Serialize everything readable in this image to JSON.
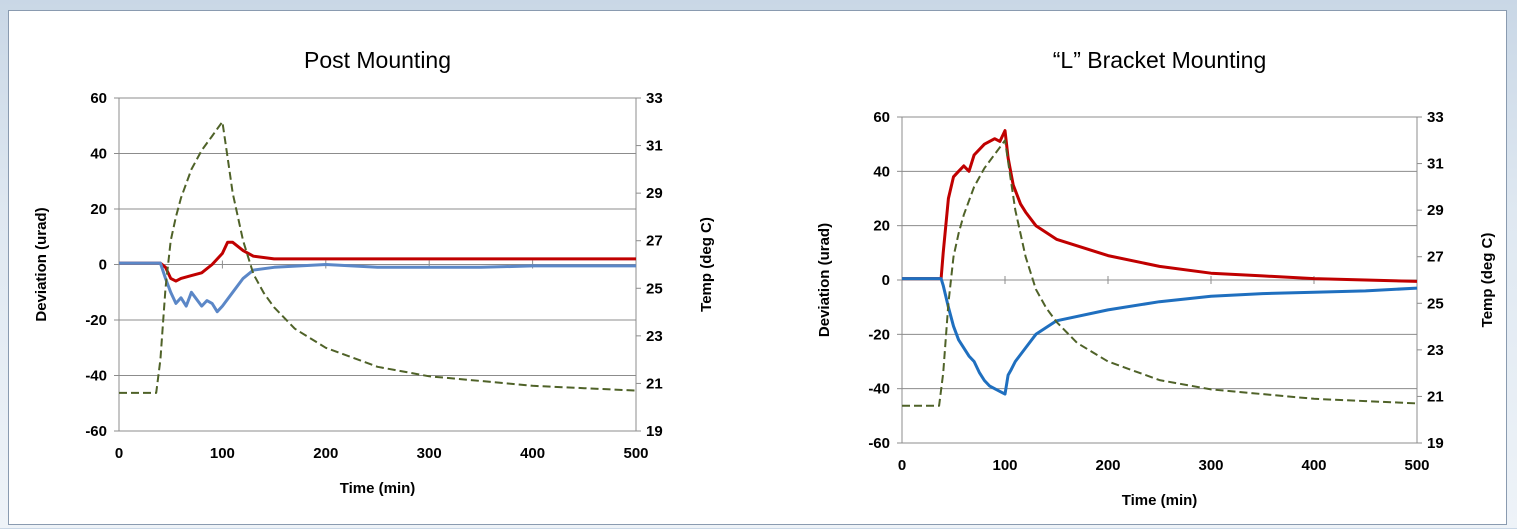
{
  "chart_data": [
    {
      "type": "line",
      "title": "Post Mounting",
      "xlabel": "Time (min)",
      "ylabel": "Deviation (urad)",
      "y2label": "Temp (deg C)",
      "xlim": [
        0,
        500
      ],
      "ylim": [
        -60,
        60
      ],
      "y2lim": [
        19,
        33
      ],
      "xticks": [
        0,
        100,
        200,
        300,
        400,
        500
      ],
      "yticks": [
        -60,
        -40,
        -20,
        0,
        20,
        40,
        60
      ],
      "y2ticks": [
        19,
        21,
        23,
        25,
        27,
        29,
        31,
        33
      ],
      "grid": true,
      "series": [
        {
          "color": "#c00000",
          "axis": "left",
          "style": "solid",
          "x": [
            0,
            20,
            40,
            45,
            50,
            55,
            60,
            70,
            80,
            90,
            100,
            105,
            110,
            120,
            130,
            150,
            200,
            250,
            300,
            350,
            400,
            450,
            500
          ],
          "y": [
            0.5,
            0.5,
            0.5,
            -1,
            -5,
            -6,
            -5,
            -4,
            -3,
            0,
            4,
            8,
            8,
            5,
            3,
            2,
            2,
            2,
            2,
            2,
            2,
            2,
            2
          ]
        },
        {
          "color": "#5b87c7",
          "axis": "left",
          "style": "solid",
          "x": [
            0,
            20,
            40,
            45,
            50,
            55,
            60,
            65,
            70,
            80,
            85,
            90,
            95,
            100,
            110,
            120,
            130,
            150,
            200,
            250,
            300,
            350,
            400,
            450,
            500
          ],
          "y": [
            0.5,
            0.5,
            0.5,
            -5,
            -10,
            -14,
            -12,
            -15,
            -10,
            -15,
            -13,
            -14,
            -17,
            -15,
            -10,
            -5,
            -2,
            -1,
            0,
            -1,
            -1,
            -1,
            -0.5,
            -0.5,
            -0.5
          ]
        },
        {
          "color": "#4f6228",
          "axis": "right",
          "style": "dashed",
          "x": [
            0,
            20,
            36,
            40,
            45,
            50,
            55,
            60,
            70,
            80,
            90,
            95,
            100,
            105,
            110,
            120,
            130,
            140,
            150,
            170,
            200,
            250,
            300,
            350,
            400,
            450,
            500
          ],
          "y": [
            20.6,
            20.6,
            20.6,
            22,
            25,
            27,
            28,
            28.8,
            30,
            30.8,
            31.4,
            31.7,
            32,
            30.5,
            29,
            27,
            25.6,
            24.8,
            24.2,
            23.3,
            22.5,
            21.7,
            21.3,
            21.1,
            20.9,
            20.8,
            20.7
          ]
        }
      ]
    },
    {
      "type": "line",
      "title": "“L” Bracket Mounting",
      "xlabel": "Time (min)",
      "ylabel": "Deviation (urad)",
      "y2label": "Temp (deg C)",
      "xlim": [
        0,
        500
      ],
      "ylim": [
        -60,
        60
      ],
      "y2lim": [
        19,
        33
      ],
      "xticks": [
        0,
        100,
        200,
        300,
        400,
        500
      ],
      "yticks": [
        -60,
        -40,
        -20,
        0,
        20,
        40,
        60
      ],
      "y2ticks": [
        19,
        21,
        23,
        25,
        27,
        29,
        31,
        33
      ],
      "grid": true,
      "series": [
        {
          "color": "#c00000",
          "axis": "left",
          "style": "solid",
          "x": [
            0,
            20,
            38,
            40,
            45,
            50,
            55,
            60,
            65,
            70,
            80,
            90,
            95,
            100,
            103,
            108,
            115,
            120,
            130,
            150,
            200,
            250,
            300,
            350,
            400,
            450,
            500
          ],
          "y": [
            0.5,
            0.5,
            0.5,
            10,
            30,
            38,
            40,
            42,
            40,
            46,
            50,
            52,
            51,
            55,
            45,
            35,
            28,
            25,
            20,
            15,
            9,
            5,
            2.5,
            1.5,
            0.5,
            0,
            -0.5
          ]
        },
        {
          "color": "#1f6fbf",
          "axis": "left",
          "style": "solid",
          "x": [
            0,
            20,
            38,
            40,
            45,
            50,
            55,
            60,
            65,
            70,
            75,
            80,
            85,
            90,
            95,
            100,
            103,
            106,
            110,
            120,
            130,
            150,
            200,
            250,
            300,
            350,
            400,
            450,
            500
          ],
          "y": [
            0.5,
            0.5,
            0.5,
            -2,
            -10,
            -17,
            -22,
            -25,
            -28,
            -30,
            -34,
            -37,
            -39,
            -40,
            -41,
            -42,
            -35,
            -33,
            -30,
            -25,
            -20,
            -15,
            -11,
            -8,
            -6,
            -5,
            -4.5,
            -4,
            -3
          ]
        },
        {
          "color": "#4f6228",
          "axis": "right",
          "style": "dashed",
          "x": [
            0,
            20,
            36,
            40,
            45,
            50,
            55,
            60,
            70,
            80,
            90,
            95,
            100,
            105,
            110,
            120,
            130,
            140,
            150,
            170,
            200,
            250,
            300,
            350,
            400,
            450,
            500
          ],
          "y": [
            20.6,
            20.6,
            20.6,
            22,
            25,
            27,
            28,
            28.8,
            30,
            30.8,
            31.4,
            31.7,
            32,
            30.5,
            29,
            27,
            25.6,
            24.8,
            24.2,
            23.3,
            22.5,
            21.7,
            21.3,
            21.1,
            20.9,
            20.8,
            20.7
          ]
        }
      ]
    }
  ]
}
